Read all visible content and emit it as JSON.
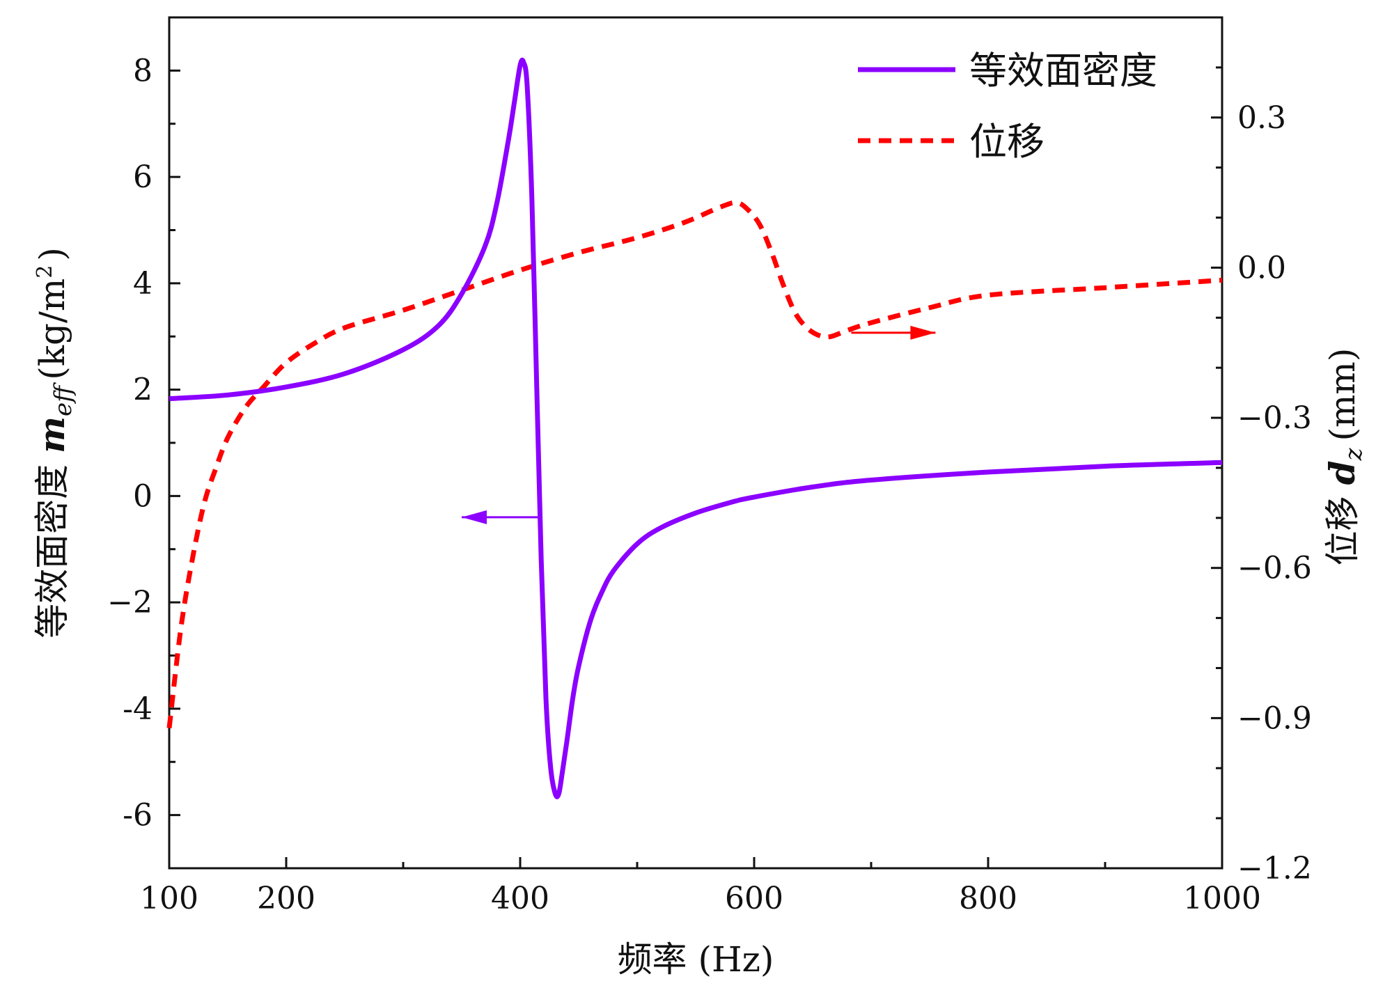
{
  "chart_data": {
    "type": "line",
    "xlabel": "频率 (Hz)",
    "ylabel_left": {
      "prefix": "等效面密度",
      "symbol": "m",
      "subscript": "eff",
      "unit_open": "(kg/m",
      "unit_power": "2",
      "unit_close": ")"
    },
    "ylabel_right": {
      "prefix": "位移",
      "symbol": "d",
      "subscript": "z",
      "unit": "(mm)"
    },
    "xlim": [
      100,
      1000
    ],
    "ylim_left": [
      -7,
      9
    ],
    "ylim_right": [
      -1.2,
      0.5
    ],
    "x_ticks": [
      100,
      200,
      400,
      600,
      800,
      1000
    ],
    "x_tick_labels": [
      "100",
      "200",
      "400",
      "600",
      "800",
      "1000"
    ],
    "x_minor_ticks": [
      300,
      500,
      700,
      900
    ],
    "y_left_ticks": [
      8,
      6,
      4,
      2,
      0,
      -2,
      -4,
      -6
    ],
    "y_left_tick_labels": [
      "8",
      "6",
      "4",
      "2",
      "0",
      "−2",
      "-4",
      "-6"
    ],
    "y_right_ticks": [
      0.3,
      0.0,
      -0.3,
      -0.6,
      -0.9,
      -1.2
    ],
    "y_right_tick_labels": [
      "0.3",
      "0.0",
      "−0.3",
      "−0.6",
      "−0.9",
      "−1.2"
    ],
    "legend_position": "top-right",
    "series": [
      {
        "name": "等效面密度",
        "axis": "left",
        "color": "#8B00FF",
        "style": "solid",
        "x": [
          100,
          150,
          200,
          250,
          300,
          330,
          350,
          370,
          380,
          390,
          395,
          400,
          403,
          406,
          410,
          414,
          418,
          422,
          426,
          430,
          433,
          436,
          440,
          445,
          450,
          460,
          470,
          480,
          500,
          520,
          550,
          580,
          600,
          650,
          700,
          800,
          900,
          1000
        ],
        "values": [
          1.83,
          1.9,
          2.05,
          2.3,
          2.75,
          3.2,
          3.8,
          4.7,
          5.5,
          6.7,
          7.4,
          8.1,
          8.15,
          7.7,
          5.6,
          2.2,
          -1.2,
          -3.8,
          -5.1,
          -5.6,
          -5.6,
          -5.2,
          -4.6,
          -3.8,
          -3.2,
          -2.35,
          -1.8,
          -1.4,
          -0.9,
          -0.6,
          -0.32,
          -0.12,
          -0.02,
          0.17,
          0.3,
          0.45,
          0.56,
          0.63
        ]
      },
      {
        "name": "位移",
        "axis": "right",
        "color": "#FF0000",
        "style": "dashed",
        "x": [
          100,
          110,
          120,
          130,
          140,
          150,
          165,
          180,
          200,
          225,
          250,
          300,
          350,
          400,
          450,
          500,
          540,
          570,
          585,
          595,
          605,
          615,
          625,
          635,
          645,
          655,
          665,
          680,
          700,
          750,
          800,
          900,
          1000
        ],
        "values": [
          -0.92,
          -0.72,
          -0.58,
          -0.47,
          -0.4,
          -0.34,
          -0.28,
          -0.24,
          -0.19,
          -0.15,
          -0.12,
          -0.085,
          -0.045,
          -0.005,
          0.03,
          0.06,
          0.09,
          0.12,
          0.13,
          0.115,
          0.085,
          0.03,
          -0.035,
          -0.09,
          -0.12,
          -0.135,
          -0.138,
          -0.125,
          -0.11,
          -0.08,
          -0.055,
          -0.04,
          -0.025
        ]
      }
    ],
    "annotations": [
      {
        "type": "arrow",
        "direction": "left",
        "color": "#8B00FF",
        "from": [
          415,
          -0.4
        ],
        "to": [
          350,
          -0.4
        ],
        "axis": "left"
      },
      {
        "type": "arrow",
        "direction": "right",
        "color": "#FF0000",
        "from": [
          683,
          -0.13
        ],
        "to": [
          755,
          -0.13
        ],
        "axis": "right"
      }
    ]
  }
}
